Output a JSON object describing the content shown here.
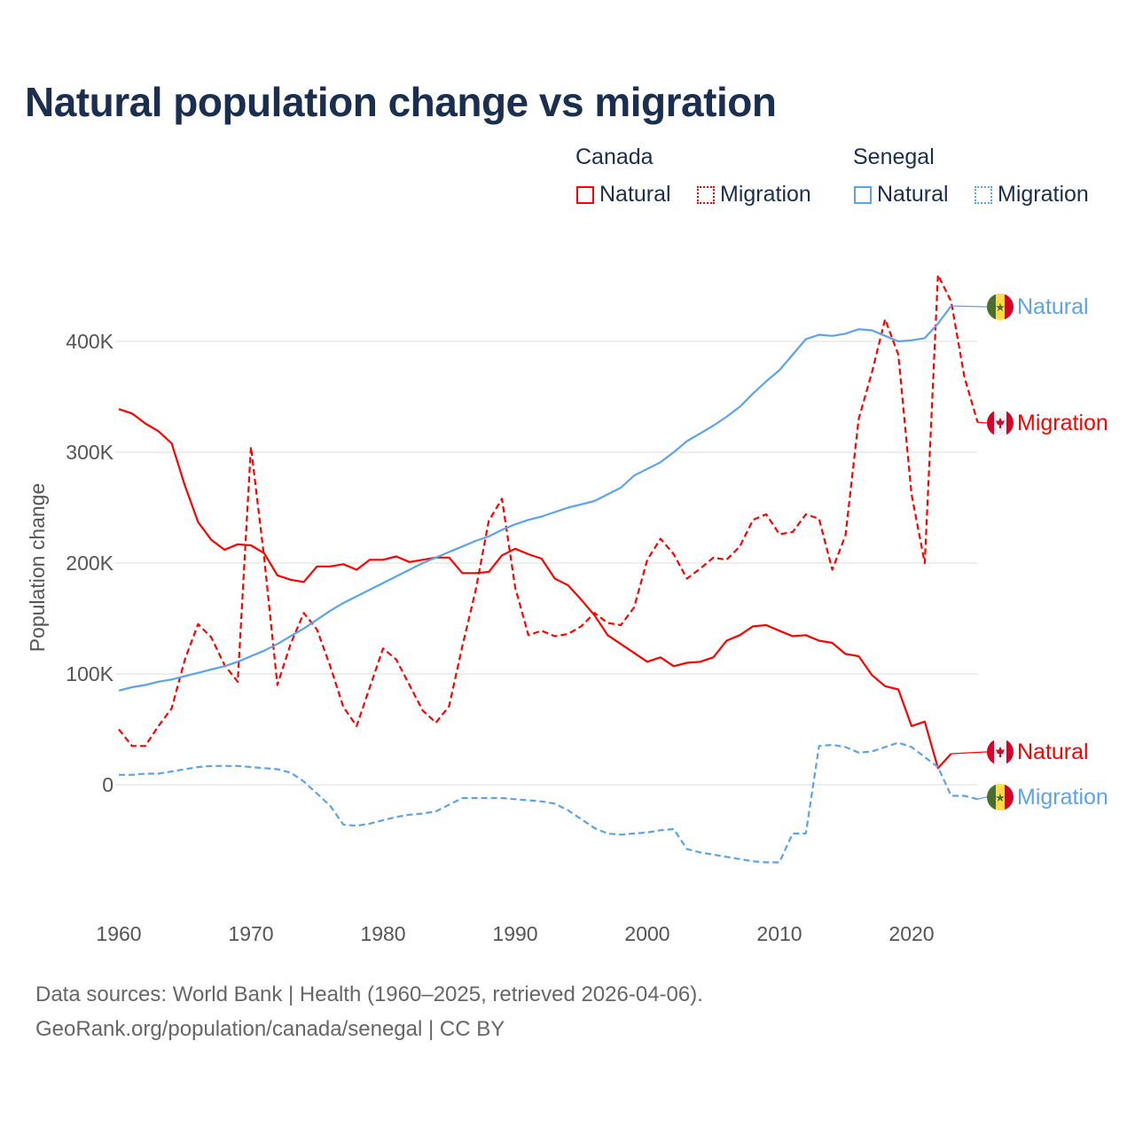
{
  "title": "Natural population change vs migration",
  "legend": {
    "groups": [
      {
        "name": "Canada",
        "items": [
          {
            "label": "Natural",
            "style": "solid"
          },
          {
            "label": "Migration",
            "style": "dotted"
          }
        ],
        "color": "#ff0000"
      },
      {
        "name": "Senegal",
        "items": [
          {
            "label": "Natural",
            "style": "solid"
          },
          {
            "label": "Migration",
            "style": "dotted"
          }
        ],
        "color": "#5ba3ea"
      }
    ]
  },
  "footer": {
    "line1": "Data sources: World Bank | Health (1960–2025, retrieved 2026-04-06).",
    "line2": "GeoRank.org/population/canada/senegal | CC BY"
  },
  "chart_data": {
    "type": "line",
    "title": "Natural population change vs migration",
    "xlabel": "",
    "ylabel": "Population change",
    "xlim": [
      1960,
      2025
    ],
    "ylim": [
      -100000,
      470000
    ],
    "x_ticks": [
      1960,
      1970,
      1980,
      1990,
      2000,
      2010,
      2020
    ],
    "y_ticks": [
      {
        "value": 0,
        "label": "0"
      },
      {
        "value": 100000,
        "label": "100K"
      },
      {
        "value": 200000,
        "label": "200K"
      },
      {
        "value": 300000,
        "label": "300K"
      },
      {
        "value": 400000,
        "label": "400K"
      }
    ],
    "grid": true,
    "start_year": 1960,
    "series": [
      {
        "name": "Canada Natural",
        "end_label": "Natural",
        "flag": "canada",
        "color": "#ff0000",
        "dash": false,
        "values": [
          339,
          335,
          326,
          319,
          308,
          270,
          237,
          221,
          212,
          217,
          216,
          209,
          189,
          185,
          183,
          197,
          197,
          199,
          194,
          203,
          203,
          206,
          201,
          203,
          205,
          205,
          191,
          191,
          192,
          207,
          213,
          208,
          204,
          186,
          180,
          167,
          153,
          135,
          127,
          119,
          111,
          115,
          107,
          110,
          111,
          115,
          130,
          135,
          143,
          144,
          139,
          134,
          135,
          130,
          128,
          118,
          116,
          99,
          89,
          86,
          53,
          57,
          15,
          28
        ]
      },
      {
        "name": "Canada Migration",
        "end_label": "Migration",
        "flag": "canada",
        "color": "#ff0000",
        "dash": true,
        "values": [
          50,
          35,
          35,
          53,
          69,
          113,
          145,
          133,
          108,
          93,
          305,
          205,
          90,
          127,
          155,
          140,
          107,
          70,
          53,
          88,
          123,
          113,
          90,
          67,
          56,
          71,
          125,
          175,
          238,
          258,
          178,
          135,
          139,
          134,
          136,
          143,
          155,
          146,
          144,
          160,
          203,
          222,
          208,
          186,
          195,
          205,
          203,
          215,
          239,
          244,
          226,
          228,
          244,
          240,
          194,
          225,
          330,
          372,
          420,
          388,
          262,
          200,
          460,
          436,
          368,
          327
        ]
      },
      {
        "name": "Senegal Natural",
        "end_label": "Natural",
        "flag": "senegal",
        "color": "#5ba3ea",
        "dash": false,
        "values": [
          85,
          88,
          90,
          93,
          95,
          98,
          101,
          104,
          107,
          111,
          116,
          121,
          127,
          134,
          141,
          149,
          157,
          164,
          170,
          176,
          182,
          188,
          194,
          200,
          205,
          210,
          215,
          220,
          224,
          230,
          235,
          239,
          242,
          246,
          250,
          253,
          256,
          262,
          268,
          279,
          285,
          291,
          300,
          310,
          317,
          324,
          332,
          341,
          353,
          364,
          374,
          388,
          402,
          406,
          405,
          407,
          411,
          410,
          405,
          400,
          401,
          403,
          416,
          432
        ]
      },
      {
        "name": "Senegal Migration",
        "end_label": "Migration",
        "flag": "senegal",
        "color": "#5ba3ea",
        "dash": true,
        "values": [
          9,
          9,
          10,
          10,
          12,
          14,
          16,
          17,
          17,
          17,
          16,
          15,
          14,
          11,
          3,
          -8,
          -19,
          -36,
          -37,
          -35,
          -32,
          -29,
          -27,
          -26,
          -24,
          -18,
          -12,
          -12,
          -12,
          -12,
          -13,
          -14,
          -15,
          -17,
          -23,
          -31,
          -39,
          -44,
          -45,
          -44,
          -43,
          -41,
          -40,
          -58,
          -61,
          -63,
          -65,
          -67,
          -69,
          -70,
          -70,
          -44,
          -44,
          35,
          36,
          34,
          29,
          30,
          34,
          38,
          34,
          25,
          16,
          -10,
          -10,
          -13
        ]
      }
    ],
    "value_unit": "thousands"
  }
}
